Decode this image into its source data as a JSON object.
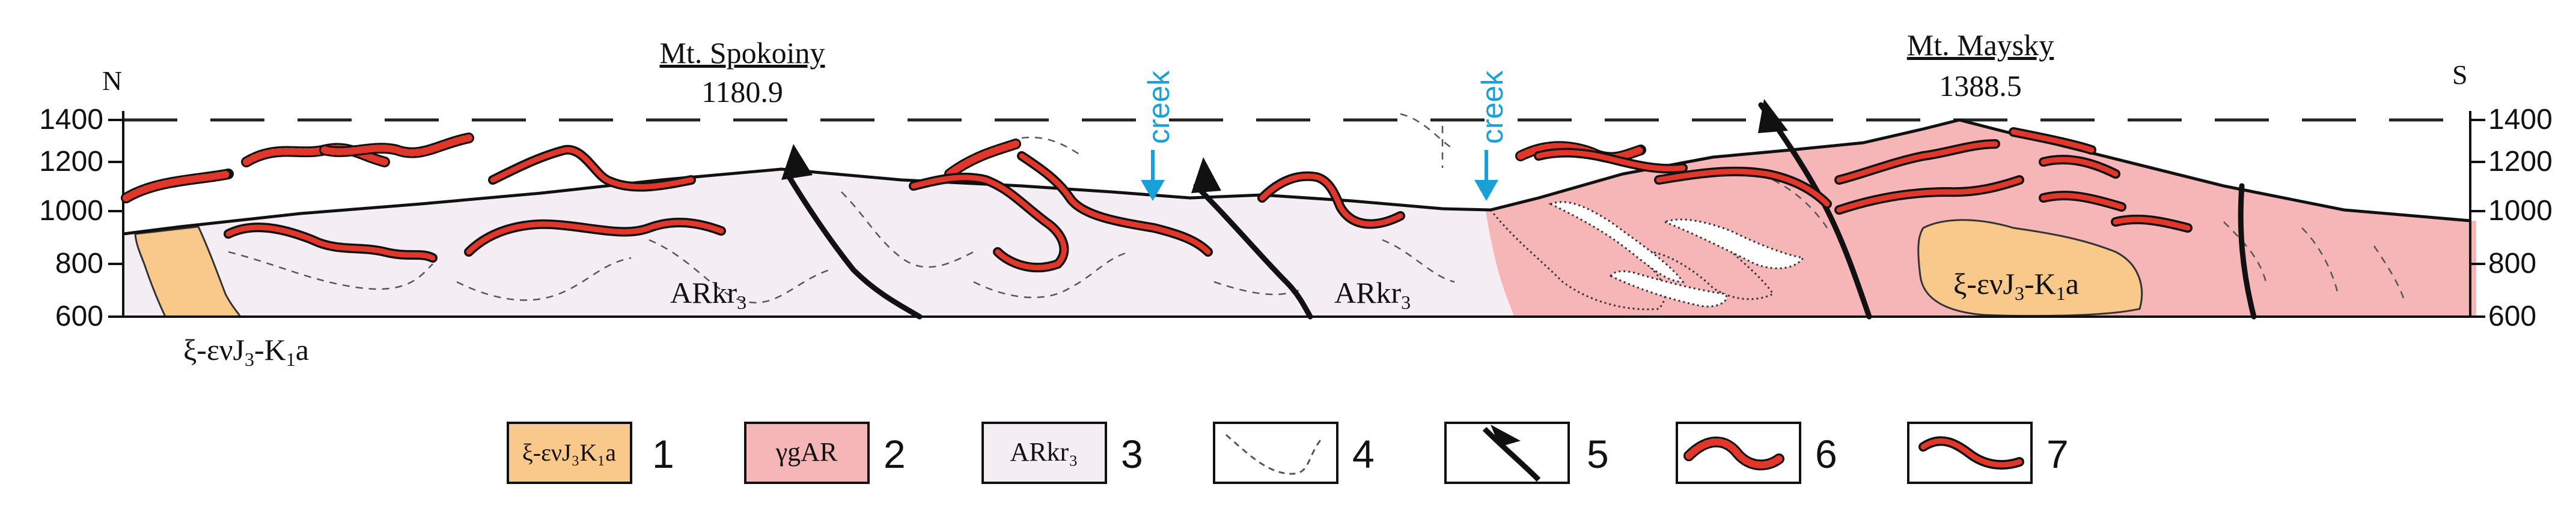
{
  "compass": {
    "north": "N",
    "south": "S"
  },
  "peaks": [
    {
      "name": "Mt. Spokoiny",
      "elevation": "1180.9"
    },
    {
      "name": "Mt. Maysky",
      "elevation": "1388.5"
    }
  ],
  "y_axis": {
    "ticks": [
      "1400",
      "1200",
      "1000",
      "800",
      "600"
    ]
  },
  "creeks": [
    "creek",
    "creek"
  ],
  "unit_labels": {
    "arkr_main": "ARkr",
    "arkr_sub": "3",
    "intrusion_prefix": "ξ-ενJ",
    "intrusion_sub1": "3",
    "intrusion_mid": "-K",
    "intrusion_sub2": "1",
    "intrusion_suffix": "a"
  },
  "legend": [
    {
      "number": "1",
      "sample": "ξ-ενJ₃K₁a",
      "fill": "#f8c98a"
    },
    {
      "number": "2",
      "sample": "γgAR",
      "fill": "#f6b6b8"
    },
    {
      "number": "3",
      "sample": "ARkr₃",
      "fill": "#f4eef4"
    },
    {
      "number": "4",
      "sample": "",
      "fill": "#ffffff"
    },
    {
      "number": "5",
      "sample": "",
      "fill": "#ffffff"
    },
    {
      "number": "6",
      "sample": "",
      "fill": "#ffffff"
    },
    {
      "number": "7",
      "sample": "",
      "fill": "#ffffff"
    }
  ],
  "colors": {
    "intrusion": "#f8c98a",
    "granite": "#f6b6b8",
    "arkr": "#f4eef4",
    "vein_red": "#e0372a",
    "creek_blue": "#1aa0d6"
  }
}
